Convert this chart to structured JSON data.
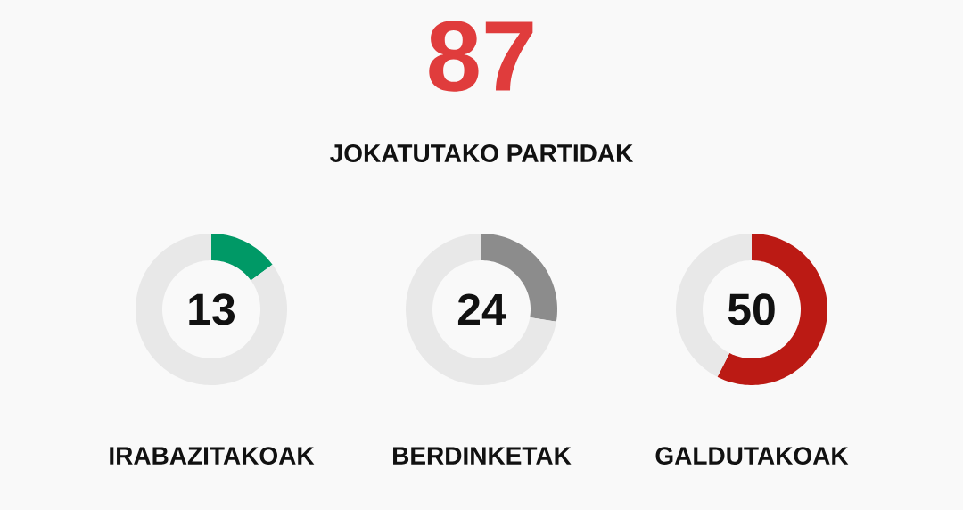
{
  "chart_data": [
    {
      "type": "other",
      "title": "87",
      "subtitle": "JOKATUTAKO PARTIDAK"
    },
    {
      "type": "donut",
      "title": "IRABAZITAKOAK",
      "annotations": [
        "13"
      ],
      "categories": [
        null,
        null
      ],
      "values": [
        14.94,
        85.06
      ],
      "colors": [
        "#009966",
        "#e8e8e8"
      ]
    },
    {
      "type": "donut",
      "title": "BERDINKETAK",
      "annotations": [
        "24"
      ],
      "categories": [
        null,
        null
      ],
      "values": [
        27.59,
        72.41
      ],
      "colors": [
        "#8c8c8c",
        "#e8e8e8"
      ]
    },
    {
      "type": "donut",
      "title": "GALDUTAKOAK",
      "annotations": [
        "50"
      ],
      "categories": [
        null,
        null
      ],
      "values": [
        57.47,
        42.53
      ],
      "colors": [
        "#bb1a14",
        "#e8e8e8"
      ]
    }
  ]
}
